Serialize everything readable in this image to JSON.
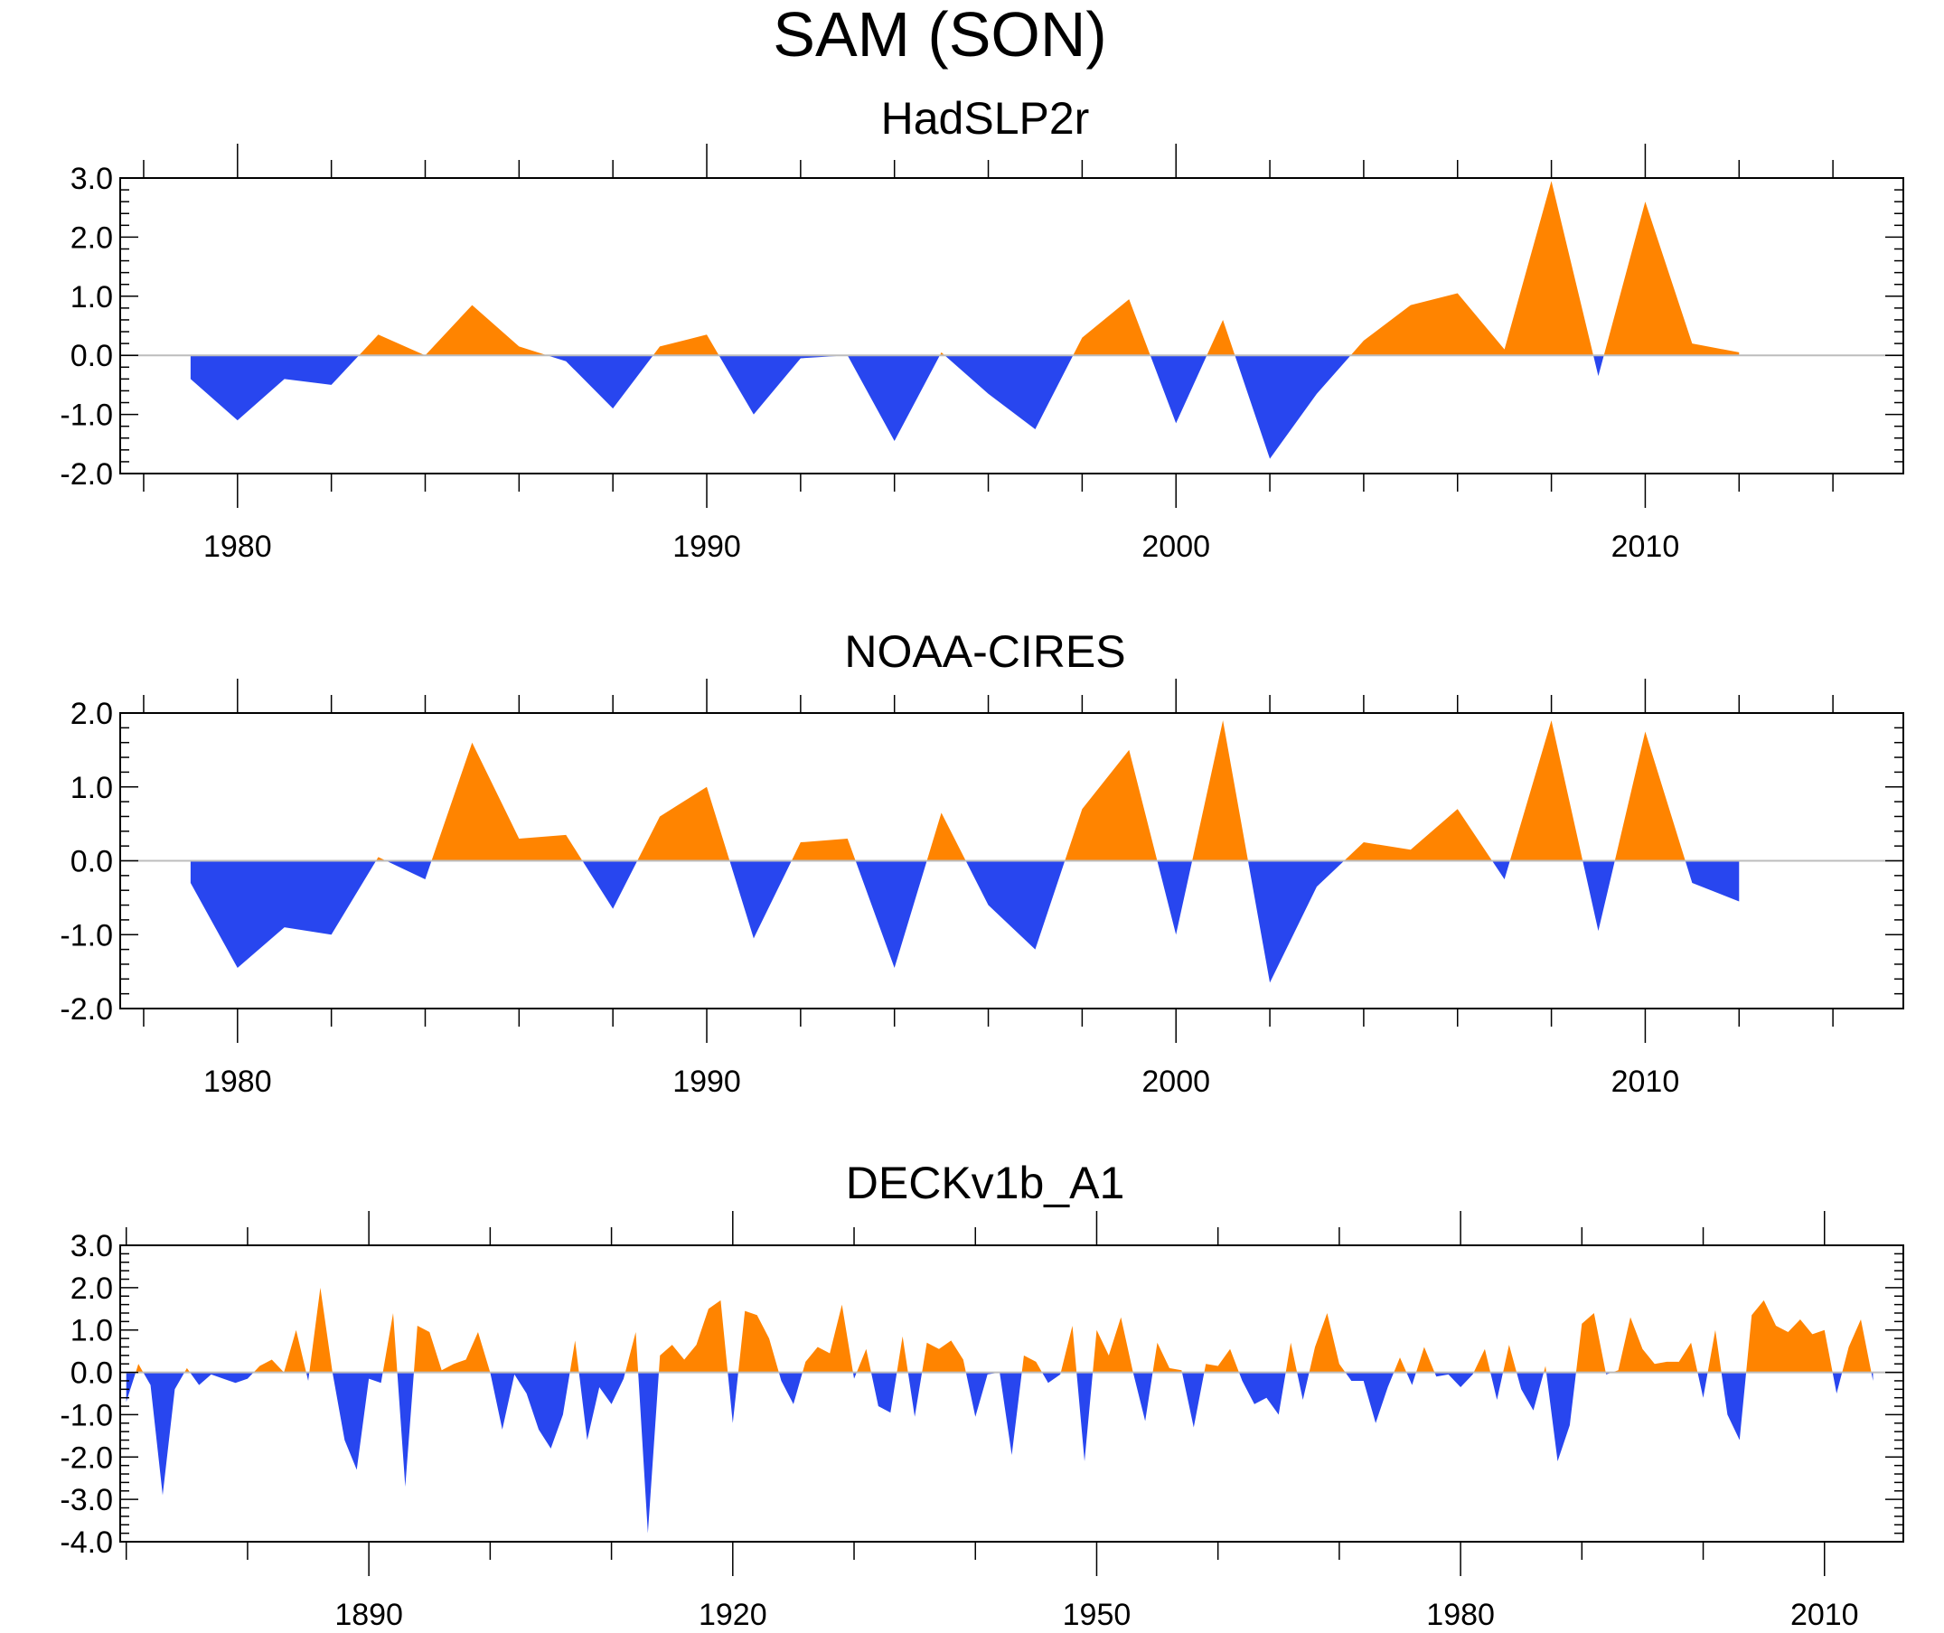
{
  "figure_title": "SAM (SON)",
  "colors": {
    "positive": "#ff8400",
    "negative": "#2846ef",
    "zero_line": "#bdbdbd",
    "axis": "#000000"
  },
  "chart_data": [
    {
      "type": "area",
      "title": "HadSLP2r",
      "xlabel": "",
      "ylabel": "",
      "xlim": [
        1977.5,
        2015.5
      ],
      "ylim": [
        -2.0,
        3.0
      ],
      "yticks": [
        3.0,
        2.0,
        1.0,
        0.0,
        -1.0,
        -2.0
      ],
      "ytick_labels": [
        "3.0",
        "2.0",
        "1.0",
        "0.0",
        "-1.0",
        "-2.0"
      ],
      "xticks_labeled": [
        1980,
        1990,
        2000,
        2010
      ],
      "xtick_labels": [
        "1980",
        "1990",
        "2000",
        "2010"
      ],
      "x_minor_step": 2,
      "y_minor_step": 0.2,
      "baseline": 0,
      "x": [
        1979,
        1980,
        1981,
        1982,
        1983,
        1984,
        1985,
        1986,
        1987,
        1988,
        1989,
        1990,
        1991,
        1992,
        1993,
        1994,
        1995,
        1996,
        1997,
        1998,
        1999,
        2000,
        2001,
        2002,
        2003,
        2004,
        2005,
        2006,
        2007,
        2008,
        2009,
        2010,
        2011,
        2012
      ],
      "values": [
        -0.4,
        -1.1,
        -0.4,
        -0.5,
        0.35,
        0.0,
        0.85,
        0.15,
        -0.1,
        -0.9,
        0.15,
        0.35,
        -1.0,
        -0.05,
        0.0,
        -1.45,
        0.05,
        -0.65,
        -1.25,
        0.3,
        0.95,
        -1.15,
        0.6,
        -1.75,
        -0.65,
        0.25,
        0.85,
        1.05,
        0.1,
        2.95,
        -0.35,
        2.6,
        0.2,
        0.05
      ]
    },
    {
      "type": "area",
      "title": "NOAA-CIRES",
      "xlabel": "",
      "ylabel": "",
      "xlim": [
        1977.5,
        2015.5
      ],
      "ylim": [
        -2.0,
        2.0
      ],
      "yticks": [
        2.0,
        1.0,
        0.0,
        -1.0,
        -2.0
      ],
      "ytick_labels": [
        "2.0",
        "1.0",
        "0.0",
        "-1.0",
        "-2.0"
      ],
      "xticks_labeled": [
        1980,
        1990,
        2000,
        2010
      ],
      "xtick_labels": [
        "1980",
        "1990",
        "2000",
        "2010"
      ],
      "x_minor_step": 2,
      "y_minor_step": 0.2,
      "baseline": 0,
      "x": [
        1979,
        1980,
        1981,
        1982,
        1983,
        1984,
        1985,
        1986,
        1987,
        1988,
        1989,
        1990,
        1991,
        1992,
        1993,
        1994,
        1995,
        1996,
        1997,
        1998,
        1999,
        2000,
        2001,
        2002,
        2003,
        2004,
        2005,
        2006,
        2007,
        2008,
        2009,
        2010,
        2011,
        2012
      ],
      "values": [
        -0.3,
        -1.45,
        -0.9,
        -1.0,
        0.05,
        -0.25,
        1.6,
        0.3,
        0.35,
        -0.65,
        0.6,
        1.0,
        -1.05,
        0.25,
        0.3,
        -1.45,
        0.65,
        -0.6,
        -1.2,
        0.7,
        1.5,
        -1.0,
        1.9,
        -1.65,
        -0.35,
        0.25,
        0.15,
        0.7,
        -0.25,
        1.9,
        -0.95,
        1.75,
        -0.3,
        -0.55
      ]
    },
    {
      "type": "area",
      "title": "DECKv1b_A1",
      "xlabel": "",
      "ylabel": "",
      "xlim": [
        1869.5,
        2016.5
      ],
      "ylim": [
        -4.0,
        3.0
      ],
      "yticks": [
        3.0,
        2.0,
        1.0,
        0.0,
        -1.0,
        -2.0,
        -3.0,
        -4.0
      ],
      "ytick_labels": [
        "3.0",
        "2.0",
        "1.0",
        "0.0",
        "-1.0",
        "-2.0",
        "-3.0",
        "-4.0"
      ],
      "xticks_labeled": [
        1890,
        1920,
        1950,
        1980,
        2010
      ],
      "xtick_labels": [
        "1890",
        "1920",
        "1950",
        "1980",
        "2010"
      ],
      "x_minor_step": 10,
      "y_minor_step": 0.2,
      "baseline": 0,
      "x_start": 1870,
      "x_step": 1,
      "values": [
        -0.7,
        0.2,
        -0.3,
        -2.9,
        -0.4,
        0.1,
        -0.3,
        -0.05,
        -0.15,
        -0.25,
        -0.15,
        0.15,
        0.3,
        0.0,
        1.0,
        -0.2,
        2.0,
        0.0,
        -1.6,
        -2.3,
        -0.15,
        -0.25,
        1.4,
        -2.7,
        1.1,
        0.95,
        0.05,
        0.2,
        0.3,
        0.95,
        0.0,
        -1.35,
        -0.05,
        -0.5,
        -1.35,
        -1.8,
        -1.0,
        0.75,
        -1.6,
        -0.35,
        -0.75,
        -0.15,
        0.95,
        -3.8,
        0.4,
        0.65,
        0.3,
        0.65,
        1.5,
        1.7,
        -1.2,
        1.45,
        1.35,
        0.8,
        -0.2,
        -0.75,
        0.25,
        0.6,
        0.45,
        1.6,
        -0.15,
        0.55,
        -0.8,
        -0.95,
        0.85,
        -1.05,
        0.7,
        0.55,
        0.75,
        0.3,
        -1.05,
        -0.05,
        0.0,
        -1.95,
        0.4,
        0.25,
        -0.25,
        -0.05,
        1.1,
        -2.1,
        1.0,
        0.4,
        1.3,
        0.0,
        -1.15,
        0.7,
        0.1,
        0.05,
        -1.3,
        0.2,
        0.15,
        0.55,
        -0.2,
        -0.75,
        -0.6,
        -1.0,
        0.7,
        -0.65,
        0.6,
        1.4,
        0.2,
        -0.2,
        -0.2,
        -1.2,
        -0.35,
        0.35,
        -0.3,
        0.6,
        -0.1,
        -0.05,
        -0.35,
        -0.05,
        0.55,
        -0.65,
        0.65,
        -0.4,
        -0.9,
        0.15,
        -2.1,
        -1.25,
        1.15,
        1.4,
        -0.05,
        0.05,
        1.3,
        0.55,
        0.2,
        0.25,
        0.25,
        0.7,
        -0.6,
        1.0,
        -1.0,
        -1.6,
        1.35,
        1.7,
        1.1,
        0.95,
        1.25,
        0.9,
        1.0,
        -0.5,
        0.6,
        1.25,
        -0.2
      ]
    }
  ]
}
